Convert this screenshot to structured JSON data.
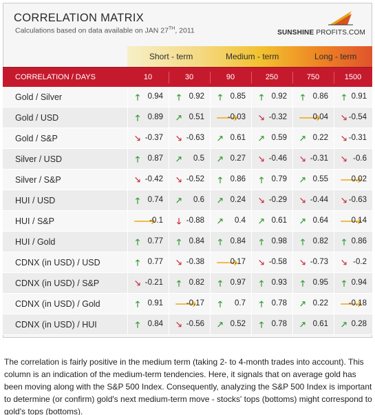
{
  "header": {
    "title": "CORRELATION MATRIX",
    "subtitle_prefix": "Calculations based on data available on  JAN 27",
    "subtitle_sup": "TH",
    "subtitle_suffix": ", 2011",
    "brand_main": "SUNSHINE",
    "brand_second": "PROFITS.COM"
  },
  "terms": {
    "short": "Short - term",
    "medium": "Medium - term",
    "long": "Long - term"
  },
  "table": {
    "label_header": "CORRELATION / DAYS",
    "columns": [
      "10",
      "30",
      "90",
      "250",
      "750",
      "1500"
    ],
    "rows": [
      {
        "label": "Gold / Silver",
        "cells": [
          {
            "v": "0.94",
            "a": "up"
          },
          {
            "v": "0.92",
            "a": "up"
          },
          {
            "v": "0.85",
            "a": "up"
          },
          {
            "v": "0.92",
            "a": "up"
          },
          {
            "v": "0.86",
            "a": "up"
          },
          {
            "v": "0.91",
            "a": "up"
          }
        ]
      },
      {
        "label": "Gold / USD",
        "cells": [
          {
            "v": "0.89",
            "a": "up"
          },
          {
            "v": "0.51",
            "a": "upright"
          },
          {
            "v": "-0.03",
            "a": "flat"
          },
          {
            "v": "-0.32",
            "a": "downright"
          },
          {
            "v": "0.04",
            "a": "flat"
          },
          {
            "v": "-0.54",
            "a": "downright"
          }
        ]
      },
      {
        "label": "Gold / S&P",
        "cells": [
          {
            "v": "-0.37",
            "a": "downright"
          },
          {
            "v": "-0.63",
            "a": "downright"
          },
          {
            "v": "0.61",
            "a": "upright"
          },
          {
            "v": "0.59",
            "a": "upright"
          },
          {
            "v": "0.22",
            "a": "upright"
          },
          {
            "v": "-0.31",
            "a": "downright"
          }
        ]
      },
      {
        "label": "Silver / USD",
        "cells": [
          {
            "v": "0.87",
            "a": "up"
          },
          {
            "v": "0.5",
            "a": "upright"
          },
          {
            "v": "0.27",
            "a": "upright"
          },
          {
            "v": "-0.46",
            "a": "downright"
          },
          {
            "v": "-0.31",
            "a": "downright"
          },
          {
            "v": "-0.6",
            "a": "downright"
          }
        ]
      },
      {
        "label": "Silver / S&P",
        "cells": [
          {
            "v": "-0.42",
            "a": "downright"
          },
          {
            "v": "-0.52",
            "a": "downright"
          },
          {
            "v": "0.86",
            "a": "up"
          },
          {
            "v": "0.79",
            "a": "up"
          },
          {
            "v": "0.55",
            "a": "upright"
          },
          {
            "v": "0.02",
            "a": "flat"
          }
        ]
      },
      {
        "label": "HUI / USD",
        "cells": [
          {
            "v": "0.74",
            "a": "up"
          },
          {
            "v": "0.6",
            "a": "upright"
          },
          {
            "v": "0.24",
            "a": "upright"
          },
          {
            "v": "-0.29",
            "a": "downright"
          },
          {
            "v": "-0.44",
            "a": "downright"
          },
          {
            "v": "-0.63",
            "a": "downright"
          }
        ]
      },
      {
        "label": "HUI / S&P",
        "cells": [
          {
            "v": "-0.1",
            "a": "flat"
          },
          {
            "v": "-0.88",
            "a": "down"
          },
          {
            "v": "0.4",
            "a": "upright"
          },
          {
            "v": "0.61",
            "a": "upright"
          },
          {
            "v": "0.64",
            "a": "upright"
          },
          {
            "v": "0.14",
            "a": "flat"
          }
        ]
      },
      {
        "label": "HUI / Gold",
        "cells": [
          {
            "v": "0.77",
            "a": "up"
          },
          {
            "v": "0.84",
            "a": "up"
          },
          {
            "v": "0.84",
            "a": "up"
          },
          {
            "v": "0.98",
            "a": "up"
          },
          {
            "v": "0.82",
            "a": "up"
          },
          {
            "v": "0.86",
            "a": "up"
          }
        ]
      },
      {
        "label": "CDNX (in USD) / USD",
        "cells": [
          {
            "v": "0.77",
            "a": "up"
          },
          {
            "v": "-0.38",
            "a": "downright"
          },
          {
            "v": "0.17",
            "a": "flat"
          },
          {
            "v": "-0.58",
            "a": "downright"
          },
          {
            "v": "-0.73",
            "a": "downright"
          },
          {
            "v": "-0.2",
            "a": "downright"
          }
        ]
      },
      {
        "label": "CDNX (in USD) / S&P",
        "cells": [
          {
            "v": "-0.21",
            "a": "downright"
          },
          {
            "v": "0.82",
            "a": "up"
          },
          {
            "v": "0.97",
            "a": "up"
          },
          {
            "v": "0.93",
            "a": "up"
          },
          {
            "v": "0.95",
            "a": "up"
          },
          {
            "v": "0.94",
            "a": "up"
          }
        ]
      },
      {
        "label": "CDNX (in USD) / Gold",
        "cells": [
          {
            "v": "0.91",
            "a": "up"
          },
          {
            "v": "-0.17",
            "a": "flat"
          },
          {
            "v": "0.7",
            "a": "up"
          },
          {
            "v": "0.78",
            "a": "up"
          },
          {
            "v": "0.22",
            "a": "upright"
          },
          {
            "v": "-0.18",
            "a": "flat"
          }
        ]
      },
      {
        "label": "CDNX (in USD) / HUI",
        "cells": [
          {
            "v": "0.84",
            "a": "up"
          },
          {
            "v": "-0.56",
            "a": "downright"
          },
          {
            "v": "0.52",
            "a": "upright"
          },
          {
            "v": "0.78",
            "a": "up"
          },
          {
            "v": "0.61",
            "a": "upright"
          },
          {
            "v": "0.28",
            "a": "upright"
          }
        ]
      }
    ]
  },
  "arrow_glyphs": {
    "up": "🡑",
    "upright": "🡕",
    "downright": "🡖",
    "down": "🡓",
    "flat": "🡒"
  },
  "colors": {
    "header_red": "#c51a2d",
    "arrow_up": "#2e9a2e",
    "arrow_down": "#c62b3c",
    "arrow_flat": "#eea915"
  },
  "note": "The correlation is fairly positive in the medium term (taking 2- to 4-month trades into account). This column is an indication of the medium-term tendencies. Here, it signals that on average gold has been moving along with the S&P 500 Index. Consequently, analyzing the S&P 500 Index is important to determine (or confirm) gold's next medium-term move - stocks' tops (bottoms) might correspond to gold's tops (bottoms)."
}
